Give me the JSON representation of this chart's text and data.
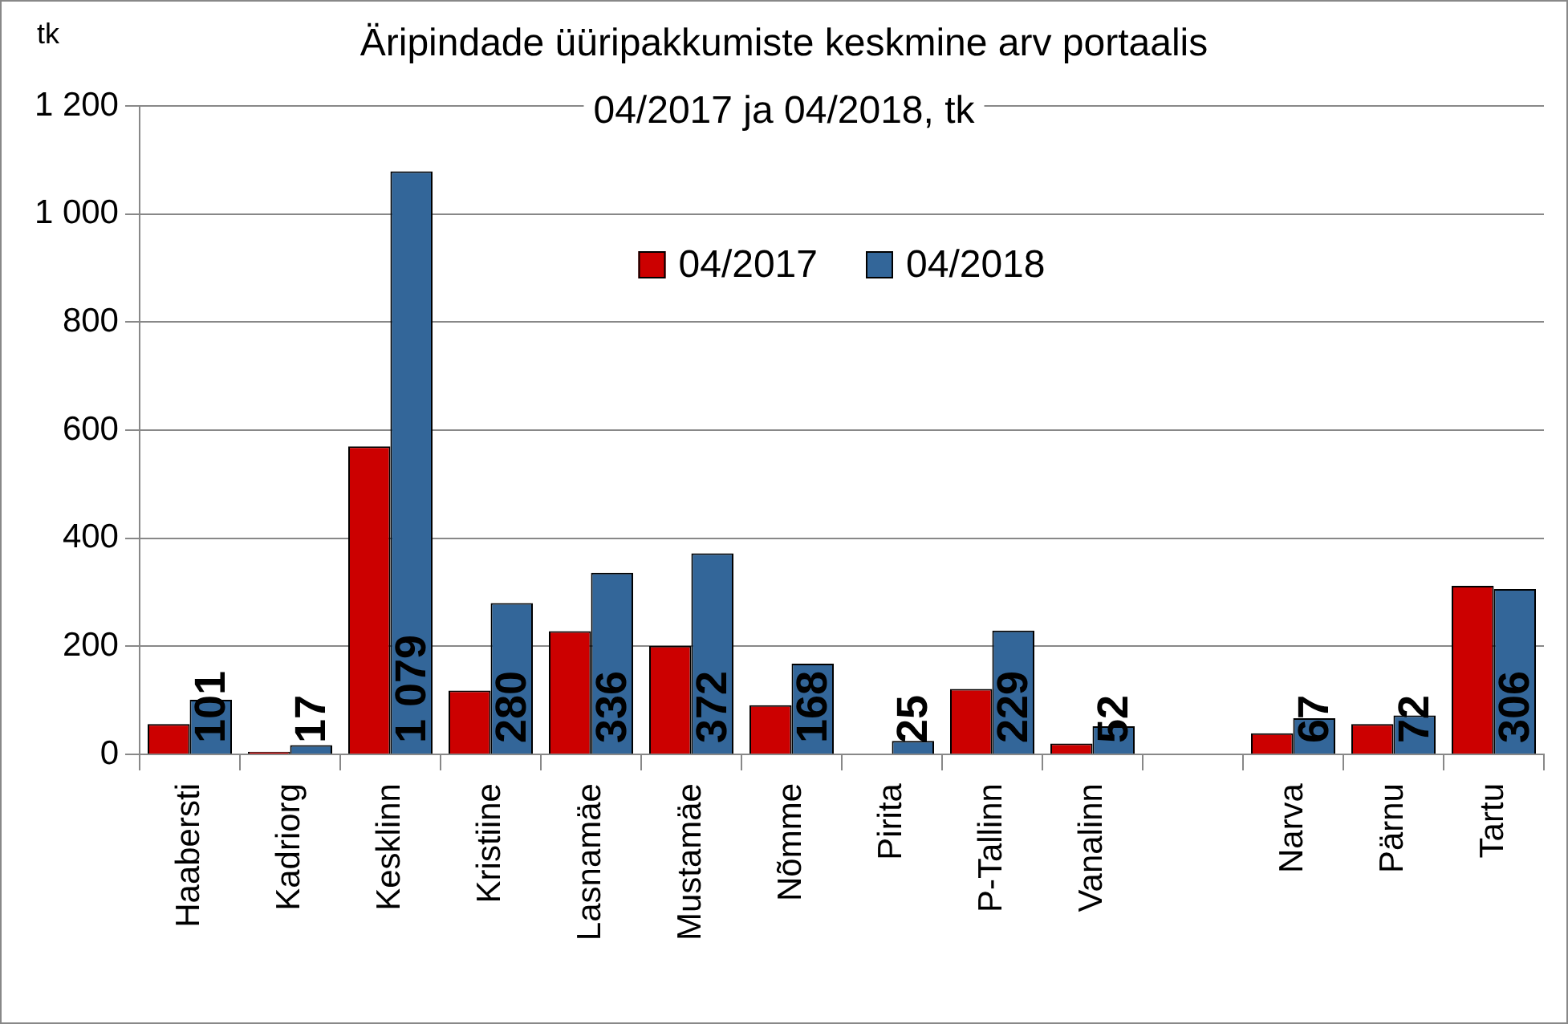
{
  "chart_data": {
    "type": "bar",
    "title": "Äripindade üüripakkumiste keskmine arv portaalis\n04/2017 ja 04/2018, tk",
    "ylabel": "tk",
    "categories": [
      "Haabersti",
      "Kadriorg",
      "Kesklinn",
      "Kristiine",
      "Lasnamäe",
      "Mustamäe",
      "Nõmme",
      "Pirita",
      "P-Tallinn",
      "Vanalinn",
      null,
      "Narva",
      "Pärnu",
      "Tartu"
    ],
    "series": [
      {
        "name": "04/2017",
        "color": "#cc0000",
        "values": [
          56,
          5,
          570,
          118,
          228,
          201,
          91,
          null,
          121,
          20,
          null,
          39,
          56,
          312
        ]
      },
      {
        "name": "04/2018",
        "color": "#336699",
        "values": [
          101,
          17,
          1079,
          280,
          336,
          372,
          168,
          25,
          229,
          52,
          null,
          67,
          72,
          306
        ],
        "value_labels": [
          "101",
          "17",
          "1 079",
          "280",
          "336",
          "372",
          "168",
          "25",
          "229",
          "52",
          null,
          "67",
          "72",
          "306"
        ]
      }
    ],
    "ylim": [
      0,
      1200
    ],
    "yticks": [
      0,
      200,
      400,
      600,
      800,
      {
        "value": 1000,
        "label": "1 000"
      },
      {
        "value": 1200,
        "label": "1 200"
      }
    ],
    "grid": "y",
    "legend": "top"
  }
}
